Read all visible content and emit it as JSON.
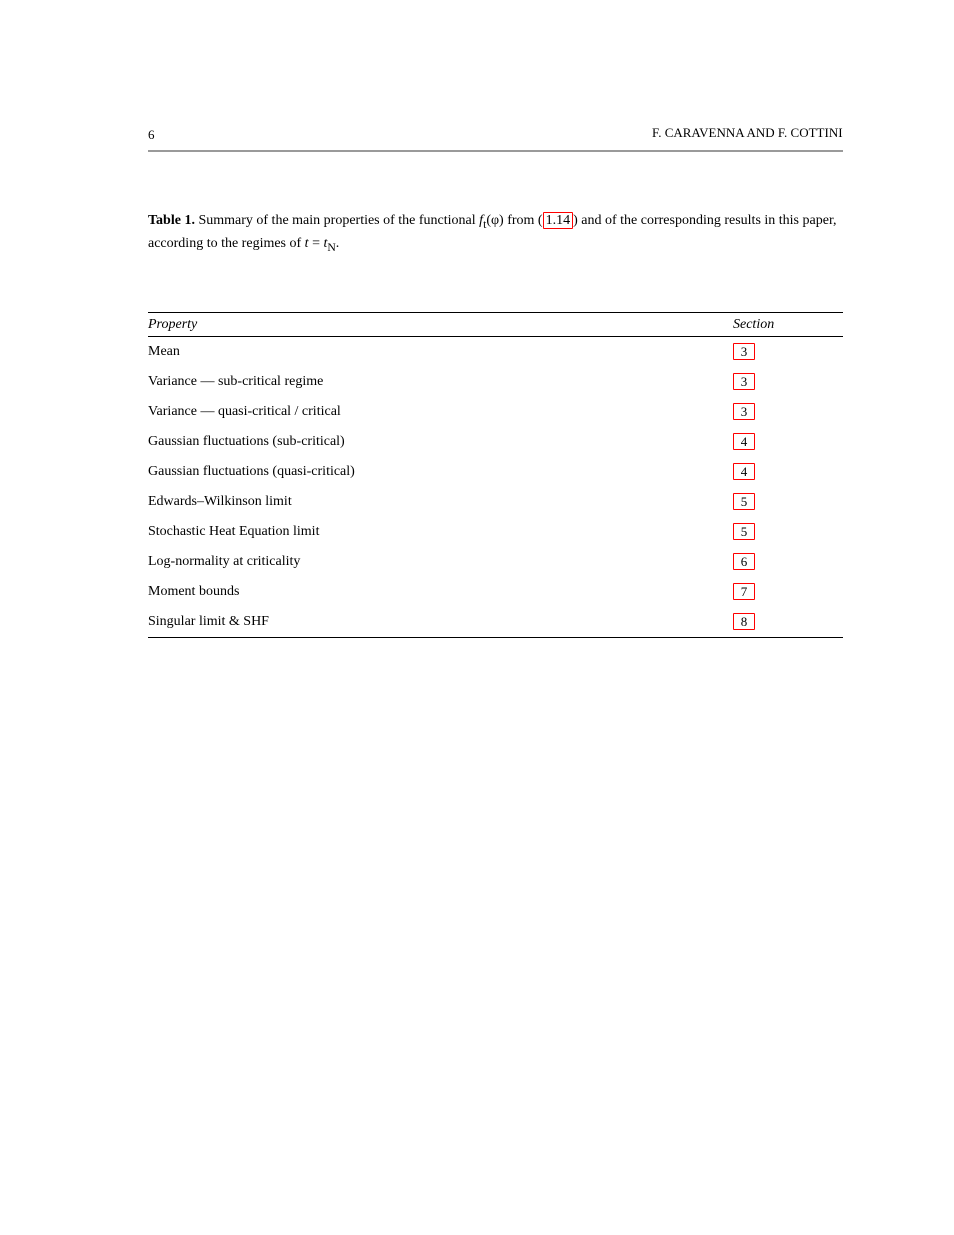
{
  "page_number": "6",
  "authors": "F. CARAVENNA AND F. COTTINI",
  "rule_color": "#9a9a9a",
  "link_border_color": "#ff0000",
  "caption": {
    "label": "Table 1.",
    "text_before": " Summary of the main properties of the functional ",
    "func": "f",
    "sub": "t",
    "arg": "(φ)",
    "from_eq": " from (",
    "ref": "1.14",
    "after_ref": ") and of the corresponding results in this paper, according to the regimes of ",
    "var": "t",
    "tail": " = ",
    "tN": "t",
    "subN": "N",
    "period": "."
  },
  "table": {
    "columns": [
      "Property",
      "Section"
    ],
    "rows": [
      {
        "prop": "Mean",
        "sec": "3"
      },
      {
        "prop": "Variance — sub-critical regime",
        "sec": "3"
      },
      {
        "prop": "Variance — quasi-critical / critical",
        "sec": "3"
      },
      {
        "prop": "Gaussian fluctuations (sub-critical)",
        "sec": "4"
      },
      {
        "prop": "Gaussian fluctuations (quasi-critical)",
        "sec": "4"
      },
      {
        "prop": "Edwards–Wilkinson limit",
        "sec": "5"
      },
      {
        "prop": "Stochastic Heat Equation limit",
        "sec": "5"
      },
      {
        "prop": "Log-normality at criticality",
        "sec": "6"
      },
      {
        "prop": "Moment bounds",
        "sec": "7"
      },
      {
        "prop": "Singular limit & SHF",
        "sec": "8"
      }
    ]
  }
}
